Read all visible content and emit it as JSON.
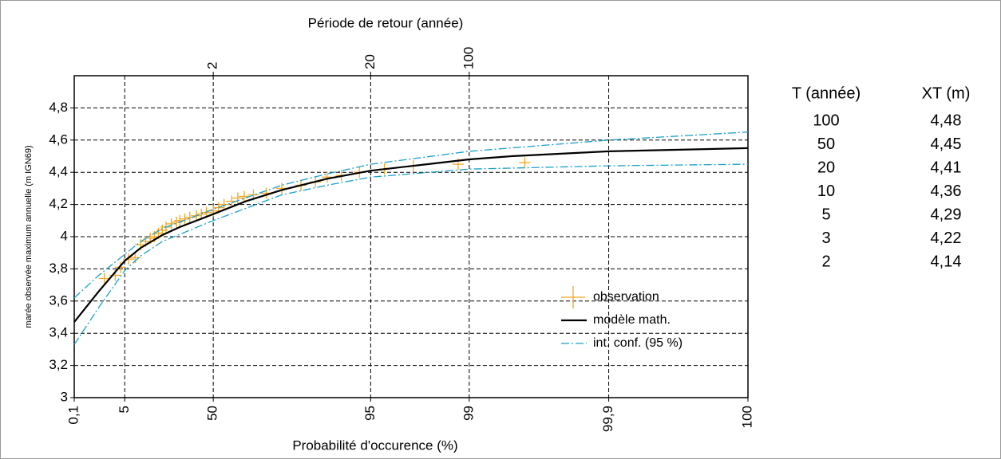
{
  "chart_data": {
    "type": "line",
    "title": "Période de retour (année)",
    "xlabel": "Probabilité d'occurence (%)",
    "ylabel": "marée observée maximum annuelle (m IGN69)",
    "xscale": "gumbel",
    "xlim": [
      0.1,
      99.99
    ],
    "xticks": [
      {
        "value": 0.1,
        "label": "0,1"
      },
      5,
      50,
      95,
      99,
      {
        "value": 99.9,
        "label": "99,9"
      },
      {
        "value": 99.99,
        "label": "100"
      }
    ],
    "x2scale": "return-period",
    "x2ticks": [
      2,
      20,
      100
    ],
    "ylim": [
      3,
      5
    ],
    "yticks": [
      3,
      {
        "value": 3.2,
        "label": "3,2"
      },
      {
        "value": 3.4,
        "label": "3,4"
      },
      {
        "value": 3.6,
        "label": "3,6"
      },
      {
        "value": 3.8,
        "label": "3,8"
      },
      4,
      {
        "value": 4.2,
        "label": "4,2"
      },
      {
        "value": 4.4,
        "label": "4,4"
      },
      {
        "value": 4.6,
        "label": "4,6"
      },
      {
        "value": 4.8,
        "label": "4,8"
      }
    ],
    "grid": true,
    "legend": "lower right",
    "series": [
      {
        "name": "observation",
        "color": "#f5a623",
        "style": "cross",
        "x": [
          1.5,
          3,
          4,
          6,
          8,
          10,
          12,
          14,
          16,
          18,
          20,
          22,
          25,
          28,
          30,
          33,
          36,
          40,
          43,
          46,
          50,
          53,
          56,
          60,
          63,
          66,
          70,
          75,
          80,
          85,
          88,
          90,
          92,
          94,
          96,
          97.5,
          98.8,
          99.6
        ],
        "values": [
          3.74,
          3.76,
          3.81,
          3.86,
          3.87,
          3.95,
          3.97,
          3.99,
          4.0,
          4.02,
          4.04,
          4.06,
          4.08,
          4.09,
          4.1,
          4.11,
          4.12,
          4.13,
          4.14,
          4.15,
          4.16,
          4.18,
          4.2,
          4.22,
          4.24,
          4.25,
          4.26,
          4.27,
          4.3,
          4.32,
          4.34,
          4.37,
          4.38,
          4.4,
          4.42,
          4.44,
          4.45,
          4.46
        ]
      },
      {
        "name": "modèle math.",
        "color": "#000000",
        "style": "solid",
        "x": [
          0.1,
          1,
          5,
          10,
          20,
          30,
          50,
          66.7,
          80,
          90,
          95,
          98,
          99,
          99.5,
          99.9,
          99.99
        ],
        "values": [
          3.47,
          3.66,
          3.85,
          3.93,
          4.01,
          4.06,
          4.14,
          4.22,
          4.29,
          4.36,
          4.41,
          4.45,
          4.48,
          4.5,
          4.53,
          4.55
        ]
      },
      {
        "name": "int. conf. (95 %)",
        "color": "#1aa0c8",
        "style": "dashdot",
        "x": [
          0.1,
          1,
          5,
          10,
          20,
          50,
          80,
          90,
          95,
          99,
          99.9,
          99.99
        ],
        "values": [
          3.62,
          3.76,
          3.89,
          3.97,
          4.05,
          4.17,
          4.32,
          4.39,
          4.45,
          4.53,
          4.6,
          4.65
        ]
      },
      {
        "name": null,
        "color": "#1aa0c8",
        "style": "dashdot",
        "x": [
          0.1,
          1,
          5,
          10,
          20,
          50,
          80,
          90,
          95,
          99,
          99.9,
          99.99
        ],
        "values": [
          3.33,
          3.56,
          3.79,
          3.88,
          3.97,
          4.1,
          4.26,
          4.32,
          4.37,
          4.42,
          4.44,
          4.45
        ]
      }
    ]
  },
  "table": {
    "columns": [
      "T (année)",
      "XT (m)"
    ],
    "rows": [
      [
        100,
        "4,48"
      ],
      [
        50,
        "4,45"
      ],
      [
        20,
        "4,41"
      ],
      [
        10,
        "4,36"
      ],
      [
        5,
        "4,29"
      ],
      [
        3,
        "4,22"
      ],
      [
        2,
        "4,14"
      ]
    ]
  }
}
